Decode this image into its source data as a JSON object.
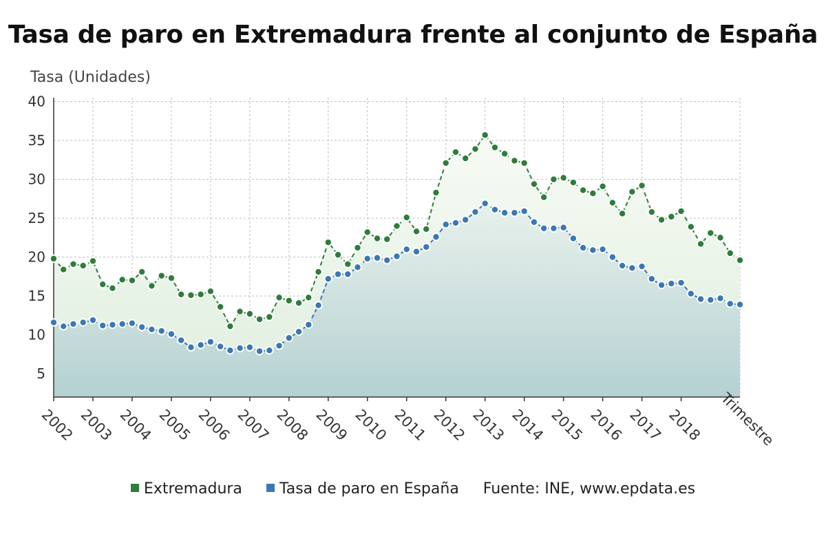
{
  "chart_data": {
    "type": "area",
    "title": "Tasa de paro en Extremadura frente al conjunto de España",
    "ylabel": "Tasa (Unidades)",
    "xlabel": "Trimestre",
    "ylim": [
      2,
      40.5
    ],
    "yticks": [
      5,
      10,
      15,
      20,
      25,
      30,
      35,
      40
    ],
    "xtick_labels": [
      "2002",
      "2003",
      "2004",
      "2005",
      "2006",
      "2007",
      "2008",
      "2009",
      "2010",
      "2011",
      "2012",
      "2013",
      "2014",
      "2015",
      "2016",
      "2017",
      "2018"
    ],
    "grid": true,
    "legend_position": "bottom",
    "source": "Fuente: INE, www.epdata.es",
    "x": [
      "2002T1",
      "2002T2",
      "2002T3",
      "2002T4",
      "2003T1",
      "2003T2",
      "2003T3",
      "2003T4",
      "2004T1",
      "2004T2",
      "2004T3",
      "2004T4",
      "2005T1",
      "2005T2",
      "2005T3",
      "2005T4",
      "2006T1",
      "2006T2",
      "2006T3",
      "2006T4",
      "2007T1",
      "2007T2",
      "2007T3",
      "2007T4",
      "2008T1",
      "2008T2",
      "2008T3",
      "2008T4",
      "2009T1",
      "2009T2",
      "2009T3",
      "2009T4",
      "2010T1",
      "2010T2",
      "2010T3",
      "2010T4",
      "2011T1",
      "2011T2",
      "2011T3",
      "2011T4",
      "2012T1",
      "2012T2",
      "2012T3",
      "2012T4",
      "2013T1",
      "2013T2",
      "2013T3",
      "2013T4",
      "2014T1",
      "2014T2",
      "2014T3",
      "2014T4",
      "2015T1",
      "2015T2",
      "2015T3",
      "2015T4",
      "2016T1",
      "2016T2",
      "2016T3",
      "2016T4",
      "2017T1",
      "2017T2",
      "2017T3",
      "2017T4",
      "2018T1",
      "2018T2",
      "2018T3",
      "2018T4",
      "2019T1",
      "2019T2",
      "2019T3"
    ],
    "series": [
      {
        "name": "Extremadura",
        "color": "#2e7d3a",
        "values": [
          19.8,
          18.4,
          19.1,
          18.9,
          19.5,
          16.5,
          16.0,
          17.1,
          17.0,
          18.1,
          16.3,
          17.6,
          17.3,
          15.2,
          15.1,
          15.2,
          15.6,
          13.6,
          11.1,
          13.0,
          12.7,
          12.0,
          12.3,
          14.8,
          14.4,
          14.1,
          14.8,
          18.1,
          21.9,
          20.3,
          19.1,
          21.2,
          23.2,
          22.4,
          22.3,
          24.0,
          25.1,
          23.3,
          23.6,
          28.3,
          32.1,
          33.5,
          32.7,
          33.9,
          35.7,
          34.1,
          33.3,
          32.4,
          32.1,
          29.4,
          27.7,
          30.0,
          30.2,
          29.6,
          28.6,
          28.2,
          29.1,
          27.0,
          25.6,
          28.4,
          29.2,
          25.8,
          24.8,
          25.2,
          25.9,
          23.9,
          21.7,
          23.1,
          22.5,
          20.5,
          19.6
        ]
      },
      {
        "name": "Tasa de paro en España",
        "color": "#3a78b5",
        "values": [
          11.6,
          11.1,
          11.4,
          11.6,
          11.9,
          11.2,
          11.3,
          11.4,
          11.5,
          11.0,
          10.7,
          10.5,
          10.1,
          9.3,
          8.4,
          8.7,
          9.1,
          8.5,
          8.0,
          8.3,
          8.4,
          7.9,
          8.0,
          8.6,
          9.6,
          10.4,
          11.3,
          13.8,
          17.2,
          17.8,
          17.8,
          18.7,
          19.8,
          19.9,
          19.6,
          20.1,
          21.0,
          20.7,
          21.3,
          22.6,
          24.2,
          24.4,
          24.8,
          25.8,
          26.9,
          26.1,
          25.7,
          25.7,
          25.9,
          24.5,
          23.7,
          23.7,
          23.8,
          22.4,
          21.2,
          20.9,
          21.0,
          20.0,
          18.9,
          18.6,
          18.8,
          17.2,
          16.4,
          16.6,
          16.7,
          15.3,
          14.6,
          14.5,
          14.7,
          14.0,
          13.9
        ]
      }
    ]
  }
}
